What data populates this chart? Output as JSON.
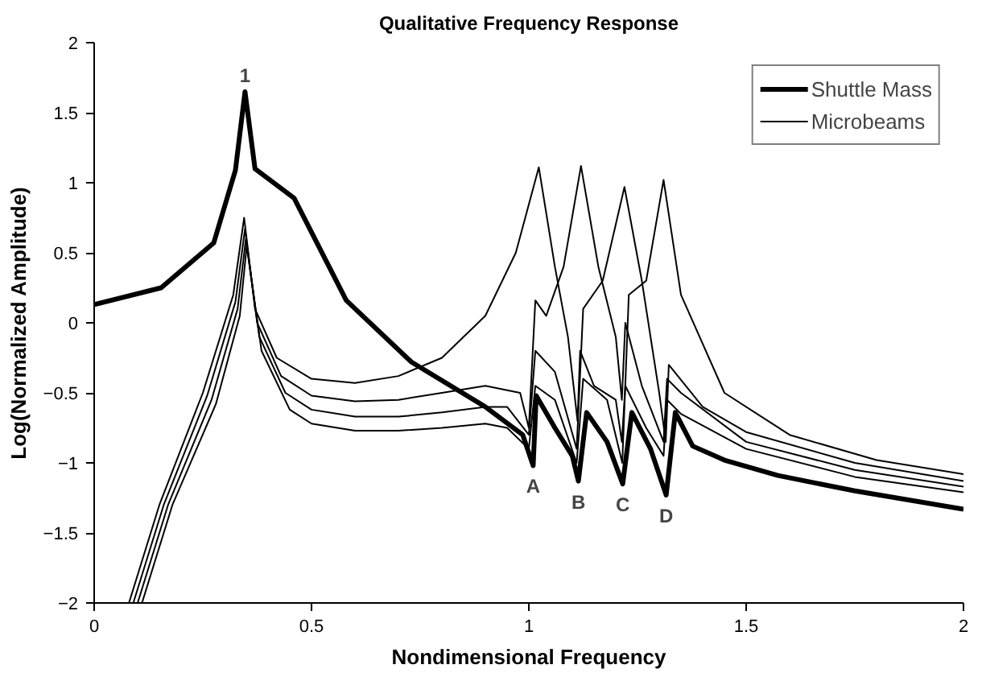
{
  "chart_data": {
    "type": "line",
    "title": "Qualitative Frequency Response",
    "xlabel": "Nondimensional Frequency",
    "ylabel": "Log(Normalized Amplitude)",
    "xlim": [
      0,
      2
    ],
    "ylim": [
      -2,
      2
    ],
    "xticks": [
      0,
      0.5,
      1,
      1.5,
      2
    ],
    "yticks": [
      -2,
      -1.5,
      -1,
      -0.5,
      0,
      0.5,
      1,
      1.5,
      2
    ],
    "grid": false,
    "legend": "top right",
    "marker": "none",
    "line_style": "solid",
    "series": [
      {
        "name": "Shuttle Mass",
        "color": "#000000",
        "x": [
          0,
          0.154,
          0.275,
          0.325,
          0.347,
          0.37,
          0.46,
          0.58,
          0.73,
          0.9,
          0.986,
          1.01,
          1.017,
          1.06,
          1.1,
          1.114,
          1.133,
          1.18,
          1.216,
          1.237,
          1.28,
          1.316,
          1.337,
          1.377,
          1.45,
          1.573,
          1.75,
          2.0
        ],
        "values": [
          0.13,
          0.25,
          0.57,
          1.09,
          1.65,
          1.1,
          0.89,
          0.16,
          -0.28,
          -0.6,
          -0.8,
          -1.02,
          -0.52,
          -0.75,
          -0.95,
          -1.13,
          -0.64,
          -0.85,
          -1.15,
          -0.64,
          -0.9,
          -1.23,
          -0.64,
          -0.88,
          -0.98,
          -1.09,
          -1.2,
          -1.33
        ]
      },
      {
        "name": "Microbeams",
        "color": "#000000",
        "x": [
          0.08,
          0.15,
          0.25,
          0.32,
          0.345,
          0.37,
          0.42,
          0.5,
          0.6,
          0.7,
          0.8,
          0.9,
          0.97,
          1.023,
          1.06,
          1.09,
          1.112,
          1.118,
          1.15,
          1.2,
          1.214,
          1.222,
          1.27,
          1.31,
          1.318,
          1.35,
          1.5,
          1.75,
          2.0
        ],
        "values": [
          -2,
          -1.3,
          -0.5,
          0.2,
          0.75,
          0.1,
          -0.25,
          -0.4,
          -0.43,
          -0.38,
          -0.25,
          0.05,
          0.5,
          1.11,
          0.4,
          -0.1,
          -0.7,
          -0.2,
          -0.45,
          -0.55,
          -0.85,
          -0.45,
          -0.75,
          -0.95,
          -0.55,
          -0.65,
          -0.9,
          -1.1,
          -1.21
        ]
      },
      {
        "color": "#000000",
        "x": [
          0.09,
          0.16,
          0.26,
          0.325,
          0.347,
          0.375,
          0.43,
          0.5,
          0.6,
          0.7,
          0.8,
          0.9,
          0.98,
          1.0,
          1.015,
          1.04,
          1.08,
          1.12,
          1.16,
          1.2,
          1.214,
          1.222,
          1.26,
          1.31,
          1.318,
          1.35,
          1.5,
          1.75,
          2.0
        ],
        "values": [
          -2,
          -1.3,
          -0.52,
          0.15,
          0.67,
          0.0,
          -0.38,
          -0.52,
          -0.56,
          -0.55,
          -0.5,
          -0.45,
          -0.5,
          -0.75,
          0.16,
          0.05,
          0.4,
          1.12,
          0.4,
          -0.1,
          -0.55,
          0.0,
          -0.45,
          -0.85,
          -0.4,
          -0.5,
          -0.85,
          -1.05,
          -1.17
        ]
      },
      {
        "color": "#000000",
        "x": [
          0.1,
          0.17,
          0.27,
          0.33,
          0.349,
          0.38,
          0.44,
          0.5,
          0.6,
          0.7,
          0.8,
          0.9,
          0.95,
          1.0,
          1.015,
          1.06,
          1.11,
          1.125,
          1.17,
          1.22,
          1.26,
          1.3,
          1.315,
          1.322,
          1.4,
          1.5,
          1.75,
          2.0
        ],
        "values": [
          -2,
          -1.3,
          -0.55,
          0.1,
          0.6,
          -0.1,
          -0.5,
          -0.62,
          -0.67,
          -0.67,
          -0.64,
          -0.6,
          -0.6,
          -0.8,
          -0.2,
          -0.35,
          -0.9,
          0.1,
          0.3,
          0.97,
          0.3,
          -0.5,
          -0.85,
          -0.3,
          -0.6,
          -0.78,
          -1.0,
          -1.13
        ]
      },
      {
        "color": "#000000",
        "x": [
          0.11,
          0.18,
          0.28,
          0.335,
          0.351,
          0.385,
          0.45,
          0.5,
          0.6,
          0.7,
          0.8,
          0.9,
          0.95,
          1.0,
          1.015,
          1.06,
          1.11,
          1.125,
          1.18,
          1.215,
          1.23,
          1.27,
          1.31,
          1.35,
          1.45,
          1.6,
          1.8,
          2.0
        ],
        "values": [
          -2,
          -1.3,
          -0.58,
          0.05,
          0.55,
          -0.2,
          -0.62,
          -0.72,
          -0.77,
          -0.77,
          -0.75,
          -0.72,
          -0.75,
          -0.9,
          -0.45,
          -0.55,
          -1.0,
          -0.4,
          -0.55,
          -1.0,
          0.2,
          0.3,
          1.02,
          0.2,
          -0.5,
          -0.8,
          -0.98,
          -1.08
        ]
      }
    ],
    "annotations": [
      {
        "text": "1",
        "x": 0.347,
        "y": 1.65
      },
      {
        "text": "A",
        "x": 1.01,
        "y": -1.02
      },
      {
        "text": "B",
        "x": 1.114,
        "y": -1.13
      },
      {
        "text": "C",
        "x": 1.216,
        "y": -1.15
      },
      {
        "text": "D",
        "x": 1.316,
        "y": -1.23
      }
    ]
  }
}
